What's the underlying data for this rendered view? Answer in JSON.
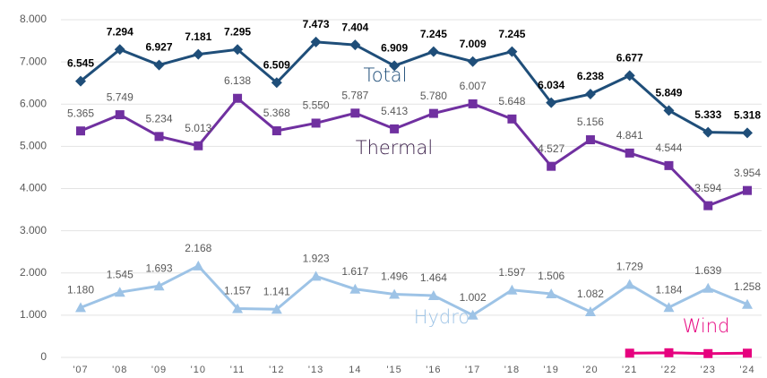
{
  "chart_data": {
    "type": "line",
    "categories": [
      "'07",
      "'08",
      "'09",
      "'10",
      "'11",
      "'12",
      "'13",
      "14",
      "'15",
      "'16",
      "'17",
      "'18",
      "'19",
      "'20",
      "'21",
      "'22",
      "'23",
      "'24"
    ],
    "series": [
      {
        "name": "Total",
        "color": "#1f4e79",
        "marker": "diamond",
        "values": [
          6.545,
          7.294,
          6.927,
          7.181,
          7.295,
          6.509,
          7.473,
          7.404,
          6.909,
          7.245,
          7.009,
          7.245,
          6.034,
          6.238,
          6.677,
          5.849,
          5.333,
          5.318
        ],
        "value_labels": [
          "6.545",
          "7.294",
          "6.927",
          "7.181",
          "7.295",
          "6.509",
          "7.473",
          "7.404",
          "6.909",
          "7.245",
          "7.009",
          "7.245",
          "6.034",
          "6.238",
          "6.677",
          "5.849",
          "5.333",
          "5.318"
        ]
      },
      {
        "name": "Thermal",
        "color": "#7030a0",
        "marker": "square",
        "values": [
          5.365,
          5.749,
          5.234,
          5.013,
          6.138,
          5.368,
          5.55,
          5.787,
          5.413,
          5.78,
          6.007,
          5.648,
          4.527,
          5.156,
          4.841,
          4.544,
          3.594,
          3.954
        ],
        "value_labels": [
          "5.365",
          "5.749",
          "5.234",
          "5.013",
          "6.138",
          "5.368",
          "5.550",
          "5.787",
          "5.413",
          "5.780",
          "6.007",
          "5.648",
          "4.527",
          "5.156",
          "4.841",
          "4.544",
          "3.594",
          "3.954"
        ]
      },
      {
        "name": "Hydro",
        "color": "#9dc3e6",
        "marker": "triangle",
        "values": [
          1.18,
          1.545,
          1.693,
          2.168,
          1.157,
          1.141,
          1.923,
          1.617,
          1.496,
          1.464,
          1.002,
          1.597,
          1.506,
          1.082,
          1.729,
          1.184,
          1.639,
          1.258
        ],
        "value_labels": [
          "1.180",
          "1.545",
          "1.693",
          "2.168",
          "1.157",
          "1.141",
          "1.923",
          "1.617",
          "1.496",
          "1.464",
          "1.002",
          "1.597",
          "1.506",
          "1.082",
          "1.729",
          "1.184",
          "1.639",
          "1.258"
        ]
      },
      {
        "name": "Wind",
        "color": "#e6007e",
        "marker": "square",
        "values": [
          null,
          null,
          null,
          null,
          null,
          null,
          null,
          null,
          null,
          null,
          null,
          null,
          null,
          null,
          0.1,
          0.11,
          0.09,
          0.1
        ]
      }
    ],
    "ylim": [
      0,
      8
    ],
    "yticks": [
      {
        "value": 0,
        "label": "0"
      },
      {
        "value": 1,
        "label": "1.000"
      },
      {
        "value": 2,
        "label": "2.000"
      },
      {
        "value": 3,
        "label": "3.000"
      },
      {
        "value": 4,
        "label": "4.000"
      },
      {
        "value": 5,
        "label": "5.000"
      },
      {
        "value": 6,
        "label": "6.000"
      },
      {
        "value": 7,
        "label": "7.000"
      },
      {
        "value": 8,
        "label": "8.000"
      }
    ],
    "grid": true
  }
}
